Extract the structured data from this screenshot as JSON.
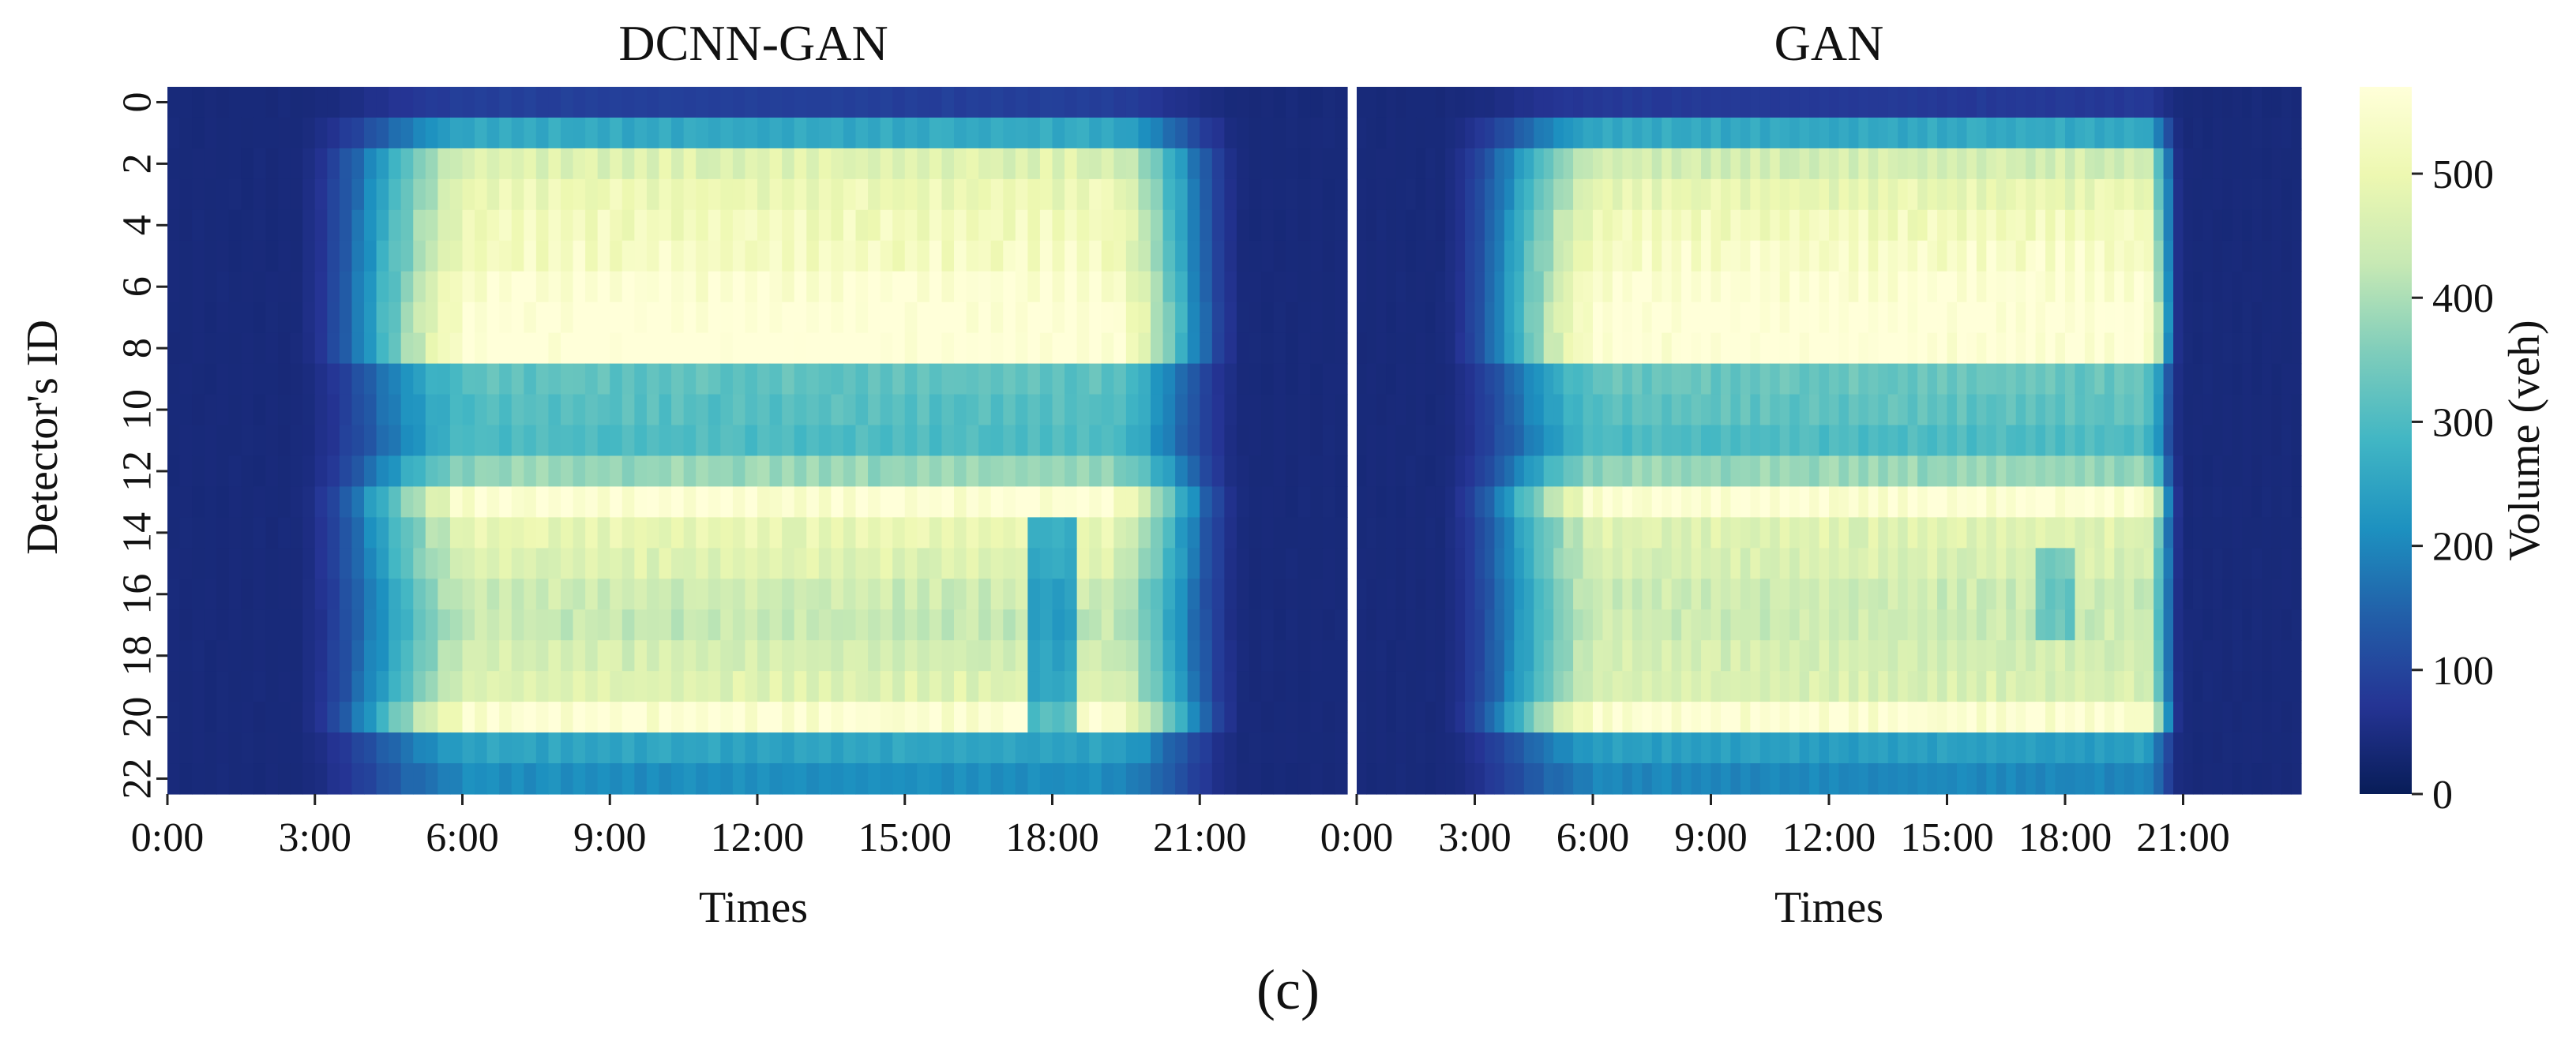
{
  "figure": {
    "panel_label": "(c)"
  },
  "colors": {
    "scale": [
      "#081d58",
      "#253494",
      "#225ea8",
      "#1d91c0",
      "#41b6c4",
      "#7fcdbb",
      "#c7e9b4",
      "#edf8b1",
      "#ffffd9"
    ]
  },
  "chart_data": [
    {
      "type": "heatmap",
      "title": "DCNN-GAN",
      "xlabel": "Times",
      "ylabel": "Detector's ID",
      "x_tick_labels": [
        "0:00",
        "3:00",
        "6:00",
        "9:00",
        "12:00",
        "15:00",
        "18:00",
        "21:00"
      ],
      "x_range_hours": [
        0,
        24
      ],
      "y_tick_labels": [
        "0",
        "2",
        "4",
        "6",
        "8",
        "10",
        "12",
        "14",
        "16",
        "18",
        "20",
        "22"
      ],
      "detectors": 23,
      "time_bins": 96,
      "row_peak_volume": [
        90,
        260,
        470,
        500,
        520,
        530,
        560,
        580,
        580,
        320,
        310,
        300,
        380,
        560,
        490,
        470,
        440,
        430,
        450,
        470,
        560,
        250,
        210
      ],
      "night_volume": 40,
      "rise_hours": [
        2.5,
        6.5
      ],
      "fall_hours": [
        19.0,
        22.0
      ],
      "dip": {
        "rows": [
          14,
          15,
          16,
          17,
          18,
          19,
          20
        ],
        "hours": [
          17.6,
          18.6
        ],
        "factor": 0.55
      }
    },
    {
      "type": "heatmap",
      "title": "GAN",
      "xlabel": "Times",
      "ylabel": "",
      "x_tick_labels": [
        "0:00",
        "3:00",
        "6:00",
        "9:00",
        "12:00",
        "15:00",
        "18:00",
        "21:00"
      ],
      "x_range_hours": [
        0,
        24
      ],
      "y_tick_labels": [],
      "detectors": 23,
      "time_bins": 96,
      "row_peak_volume": [
        80,
        260,
        450,
        490,
        520,
        540,
        560,
        580,
        570,
        330,
        320,
        300,
        380,
        560,
        470,
        460,
        440,
        440,
        450,
        460,
        560,
        240,
        200
      ],
      "night_volume": 40,
      "rise_hours": [
        2.0,
        6.5
      ],
      "fall_hours": [
        20.0,
        21.0
      ],
      "dip": {
        "rows": [
          15,
          16,
          17
        ],
        "hours": [
          17.3,
          18.3
        ],
        "factor": 0.75
      }
    }
  ],
  "colorbar": {
    "label": "Volume (veh)",
    "min": 0,
    "max": 570,
    "ticks": [
      0,
      100,
      200,
      300,
      400,
      500
    ]
  }
}
